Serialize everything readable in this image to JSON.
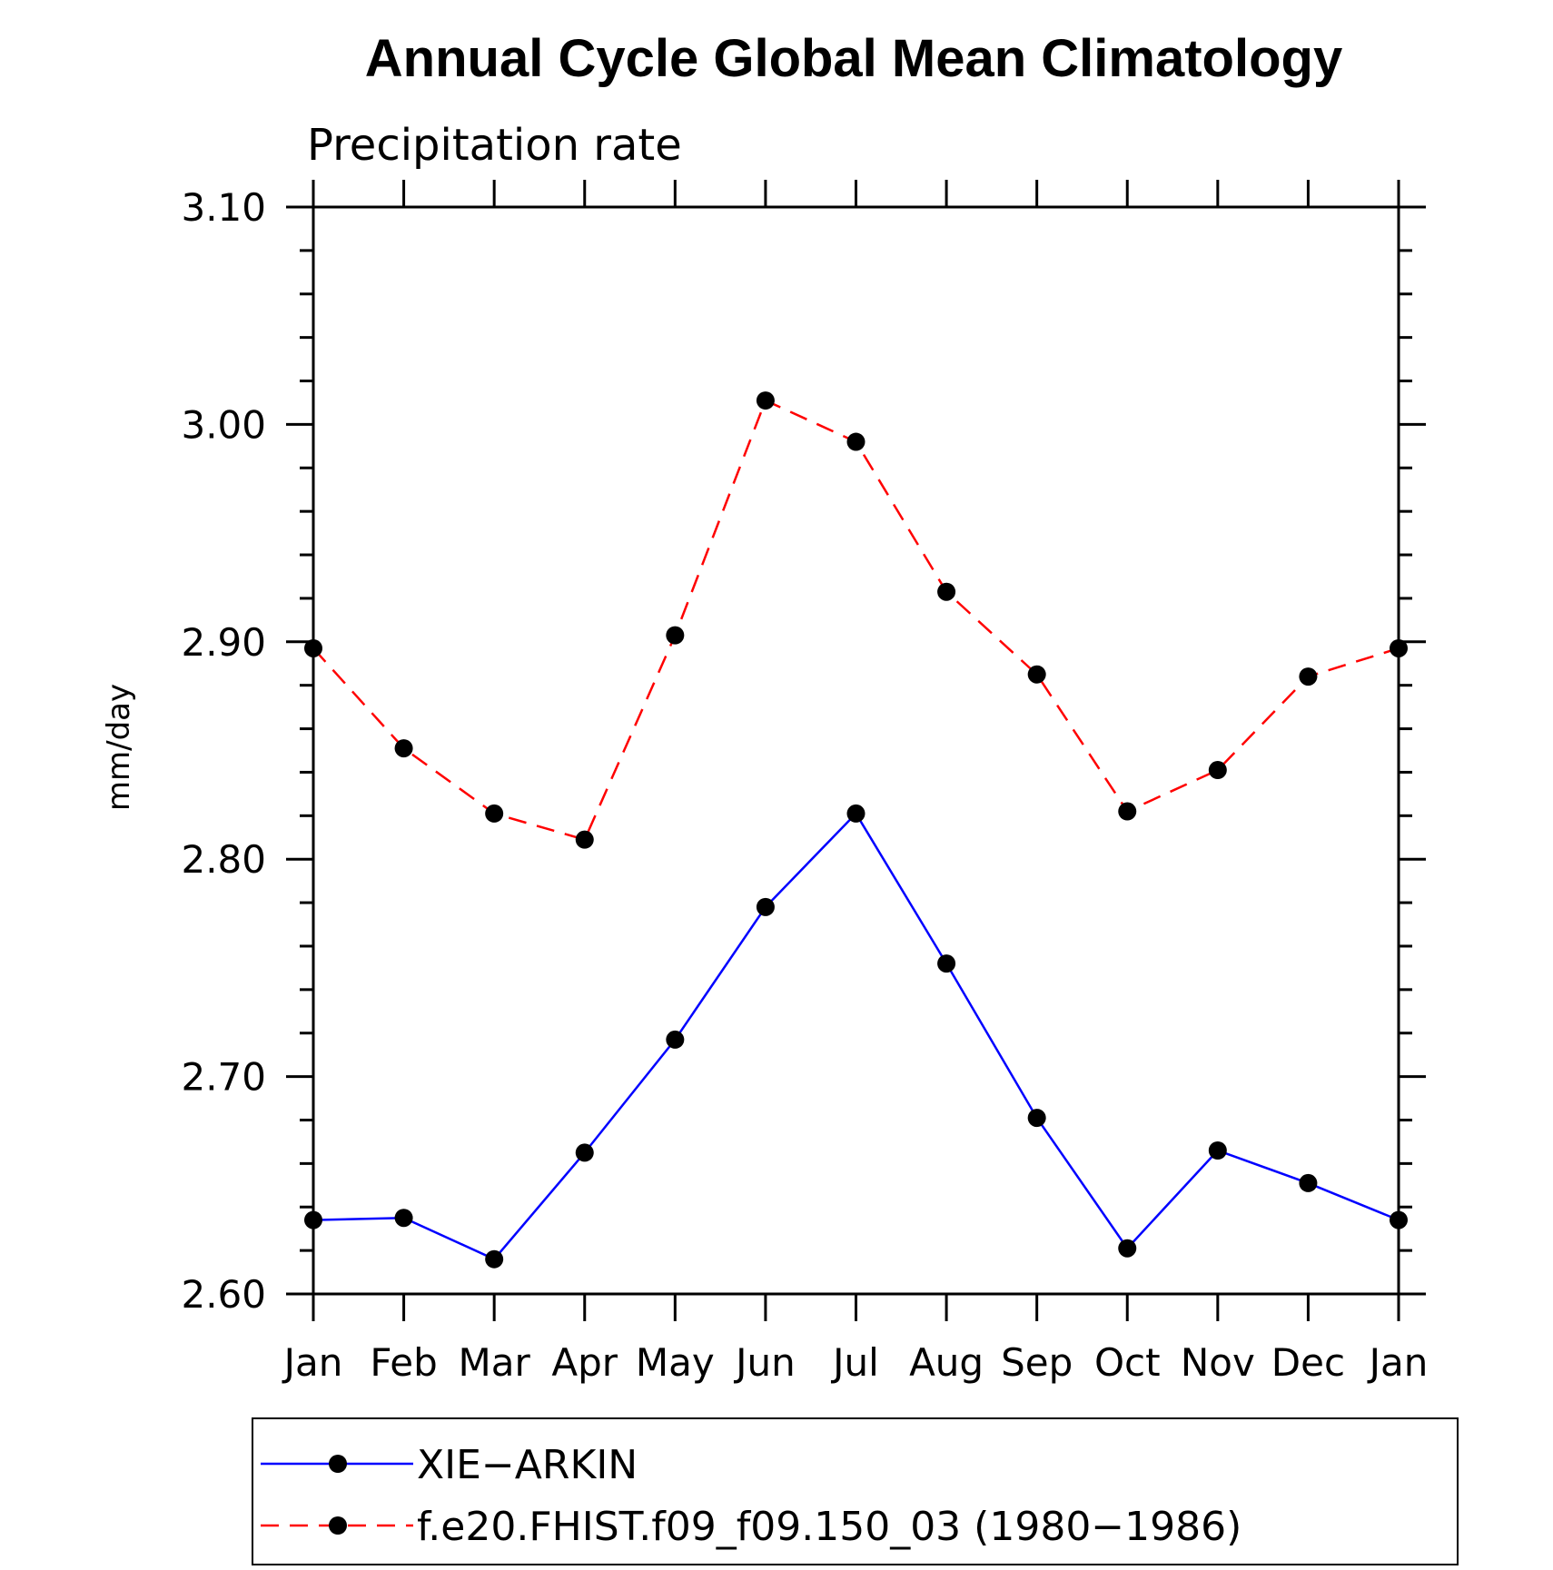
{
  "chart_data": {
    "type": "line",
    "title": "Annual Cycle Global Mean Climatology",
    "subtitle": "Precipitation rate",
    "ylabel": "mm/day",
    "xlabel": "",
    "categories": [
      "Jan",
      "Feb",
      "Mar",
      "Apr",
      "May",
      "Jun",
      "Jul",
      "Aug",
      "Sep",
      "Oct",
      "Nov",
      "Dec",
      "Jan"
    ],
    "ylim": [
      2.6,
      3.1
    ],
    "yticks": [
      "2.60",
      "2.70",
      "2.80",
      "2.90",
      "3.00",
      "3.10"
    ],
    "legend_position": "bottom",
    "series": [
      {
        "name": "XIE−ARKIN",
        "color": "#0000ff",
        "line_style": "solid",
        "marker": "filled-circle",
        "values": [
          2.634,
          2.635,
          2.616,
          2.665,
          2.717,
          2.778,
          2.821,
          2.752,
          2.681,
          2.621,
          2.666,
          2.651,
          2.634
        ]
      },
      {
        "name": "f.e20.FHIST.f09_f09.150_03 (1980−1986)",
        "color": "#ff0000",
        "line_style": "dashed",
        "marker": "filled-circle",
        "values": [
          2.897,
          2.851,
          2.821,
          2.809,
          2.903,
          3.011,
          2.992,
          2.923,
          2.885,
          2.822,
          2.841,
          2.884,
          2.897
        ]
      }
    ]
  }
}
